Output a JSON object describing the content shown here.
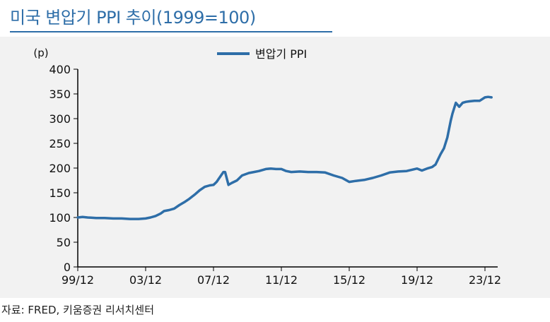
{
  "header": {
    "title": "미국 변압기 PPI 추이(1999=100)"
  },
  "footer": {
    "source": "자료: FRED, 키움증권 리서치센터"
  },
  "colors": {
    "line": "#2e6ea8",
    "title": "#2e6ea8",
    "panel_bg": "#f2f2f2",
    "axis": "#000000"
  },
  "chart_data": {
    "type": "line",
    "title": "",
    "xlabel": "",
    "ylabel": "(p)",
    "ylim": [
      0,
      400
    ],
    "yticks": [
      0,
      50,
      100,
      150,
      200,
      250,
      300,
      350,
      400
    ],
    "xticks": [
      "99/12",
      "03/12",
      "07/12",
      "11/12",
      "15/12",
      "19/12",
      "23/12"
    ],
    "xlim": [
      1999.917,
      2024.5
    ],
    "grid": false,
    "legend_position": "top-center",
    "series": [
      {
        "name": "변압기 PPI",
        "x": [
          1999.917,
          2000.2,
          2000.5,
          2001.0,
          2001.5,
          2002.0,
          2002.5,
          2003.0,
          2003.5,
          2003.917,
          2004.2,
          2004.5,
          2004.8,
          2005.0,
          2005.3,
          2005.6,
          2005.9,
          2006.2,
          2006.5,
          2006.8,
          2007.1,
          2007.4,
          2007.7,
          2007.917,
          2008.1,
          2008.3,
          2008.5,
          2008.6,
          2008.8,
          2009.0,
          2009.3,
          2009.6,
          2010.0,
          2010.3,
          2010.6,
          2011.0,
          2011.3,
          2011.6,
          2011.917,
          2012.2,
          2012.5,
          2013.0,
          2013.5,
          2014.0,
          2014.5,
          2015.0,
          2015.5,
          2015.917,
          2016.3,
          2016.8,
          2017.3,
          2017.8,
          2018.3,
          2018.8,
          2019.3,
          2019.917,
          2020.2,
          2020.5,
          2020.8,
          2021.0,
          2021.3,
          2021.5,
          2021.7,
          2021.9,
          2022.0,
          2022.2,
          2022.4,
          2022.6,
          2022.8,
          2023.0,
          2023.3,
          2023.6,
          2023.917,
          2024.1,
          2024.3
        ],
        "values": [
          100,
          101,
          100,
          99,
          99,
          98,
          98,
          97,
          97,
          98,
          100,
          103,
          108,
          113,
          115,
          118,
          125,
          131,
          138,
          146,
          155,
          162,
          165,
          166,
          172,
          182,
          192,
          192,
          166,
          170,
          175,
          185,
          190,
          192,
          194,
          198,
          199,
          198,
          198,
          194,
          192,
          193,
          192,
          192,
          191,
          185,
          180,
          172,
          174,
          176,
          180,
          185,
          191,
          193,
          194,
          199,
          195,
          199,
          202,
          207,
          228,
          240,
          262,
          296,
          310,
          332,
          324,
          332,
          334,
          335,
          336,
          336,
          343,
          344,
          343
        ]
      }
    ]
  }
}
